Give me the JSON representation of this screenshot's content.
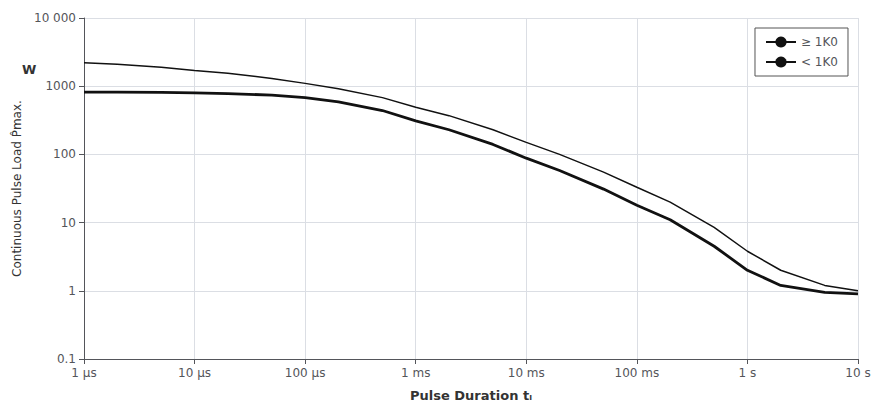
{
  "chart_data": {
    "type": "line",
    "xlabel": "Pulse Duration tᵢ",
    "ylabel": "Continuous Pulse Load P̂max.",
    "annotations": [
      "W"
    ],
    "log": true,
    "grid": true,
    "legend": "upper right",
    "xlim": [
      1e-06,
      10
    ],
    "ylim": [
      0.1,
      10000
    ],
    "xticks": [
      {
        "value": 1e-06,
        "label": "1 μs"
      },
      {
        "value": 1e-05,
        "label": "10 μs"
      },
      {
        "value": 0.0001,
        "label": "100 μs"
      },
      {
        "value": 0.001,
        "label": "1 ms"
      },
      {
        "value": 0.01,
        "label": "10 ms"
      },
      {
        "value": 0.1,
        "label": "100 ms"
      },
      {
        "value": 1.0,
        "label": "1 s"
      },
      {
        "value": 10.0,
        "label": "10 s"
      }
    ],
    "yticks": [
      0.1,
      1,
      10,
      100,
      1000,
      {
        "value": 10000,
        "label": "10 000"
      }
    ],
    "x": [
      1e-06,
      2e-06,
      5e-06,
      1e-05,
      2e-05,
      5e-05,
      0.0001,
      0.0002,
      0.0005,
      0.001,
      0.002,
      0.005,
      0.01,
      0.02,
      0.05,
      0.1,
      0.2,
      0.5,
      1.0,
      2.0,
      5.0,
      10.0
    ],
    "series": [
      {
        "name": "≥ 1K0",
        "color": "#111111",
        "values": [
          2200,
          2100,
          1900,
          1700,
          1550,
          1300,
          1100,
          920,
          680,
          490,
          370,
          230,
          150,
          100,
          55,
          33,
          20,
          8.5,
          3.8,
          2.0,
          1.2,
          1.0
        ]
      },
      {
        "name": "< 1K0",
        "color": "#111111",
        "values": [
          820,
          820,
          810,
          800,
          780,
          740,
          680,
          590,
          440,
          310,
          230,
          140,
          88,
          58,
          31,
          18,
          11,
          4.5,
          2.0,
          1.2,
          0.95,
          0.9
        ]
      }
    ]
  }
}
